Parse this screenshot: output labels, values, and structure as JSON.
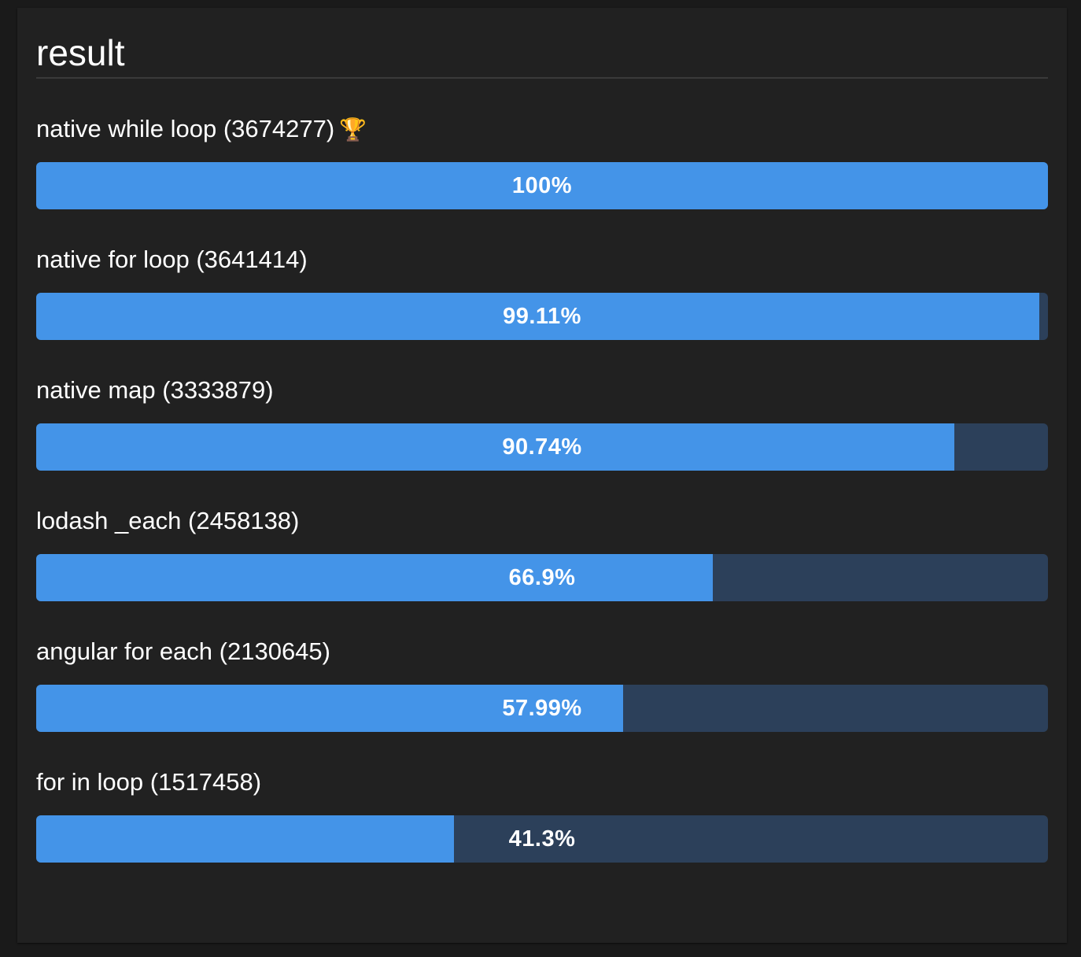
{
  "title": "result",
  "results": [
    {
      "label": "native while loop (3674277)",
      "percent_label": "100%",
      "fraction": 1.0,
      "winner": true
    },
    {
      "label": "native for loop (3641414)",
      "percent_label": "99.11%",
      "fraction": 0.9911,
      "winner": false
    },
    {
      "label": "native map (3333879)",
      "percent_label": "90.74%",
      "fraction": 0.9074,
      "winner": false
    },
    {
      "label": "lodash _each (2458138)",
      "percent_label": "66.9%",
      "fraction": 0.669,
      "winner": false
    },
    {
      "label": "angular for each (2130645)",
      "percent_label": "57.99%",
      "fraction": 0.5799,
      "winner": false
    },
    {
      "label": "for in loop (1517458)",
      "percent_label": "41.3%",
      "fraction": 0.413,
      "winner": false
    }
  ],
  "colors": {
    "background": "#1a1a1a",
    "panel": "#212121",
    "bar_fill": "#4494e8",
    "bar_track": "#2c405a",
    "trophy": "#f2b01e"
  },
  "icons": {
    "winner": "trophy-icon"
  }
}
